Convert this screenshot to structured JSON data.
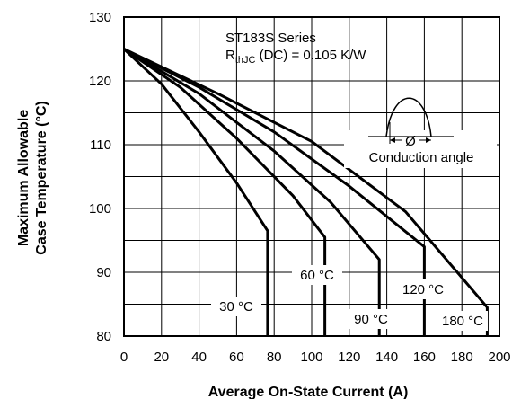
{
  "chart_data": {
    "type": "line",
    "xlabel": "Average On-State Current (A)",
    "ylabel_line1": "Maximum Allowable",
    "ylabel_line2": "Case Temperature (°C)",
    "xlim": [
      0,
      200
    ],
    "ylim": [
      80,
      130
    ],
    "xticks": [
      0,
      20,
      40,
      60,
      80,
      100,
      120,
      140,
      160,
      180,
      200
    ],
    "yticks": [
      80,
      90,
      100,
      110,
      120,
      130
    ],
    "grid": true,
    "annotations": {
      "series_title": "ST183S Series",
      "rth_main": "R",
      "rth_sub": "thJC",
      "rth_rest": " (DC) = 0.105 K/W",
      "conduction_angle": "Conduction angle",
      "phi": "Ø"
    },
    "series": [
      {
        "name": "30 °C",
        "x": [
          0,
          20,
          40,
          60,
          76.5,
          76.5
        ],
        "y": [
          125,
          119.5,
          112,
          104,
          96.5,
          80
        ]
      },
      {
        "name": "60 °C",
        "x": [
          0,
          30,
          60,
          90,
          107,
          107
        ],
        "y": [
          125,
          119,
          111,
          102,
          95.5,
          80
        ]
      },
      {
        "name": "90 °C",
        "x": [
          0,
          40,
          80,
          110,
          136,
          136
        ],
        "y": [
          125,
          118,
          109,
          101,
          92,
          80
        ]
      },
      {
        "name": "120 °C",
        "x": [
          0,
          40,
          80,
          120,
          160,
          160
        ],
        "y": [
          125,
          119,
          112,
          103.5,
          94,
          80
        ]
      },
      {
        "name": "180 °C",
        "x": [
          0,
          50,
          100,
          150,
          193.5,
          193.5
        ],
        "y": [
          125,
          118,
          110.5,
          99.5,
          84.5,
          80
        ]
      }
    ]
  }
}
